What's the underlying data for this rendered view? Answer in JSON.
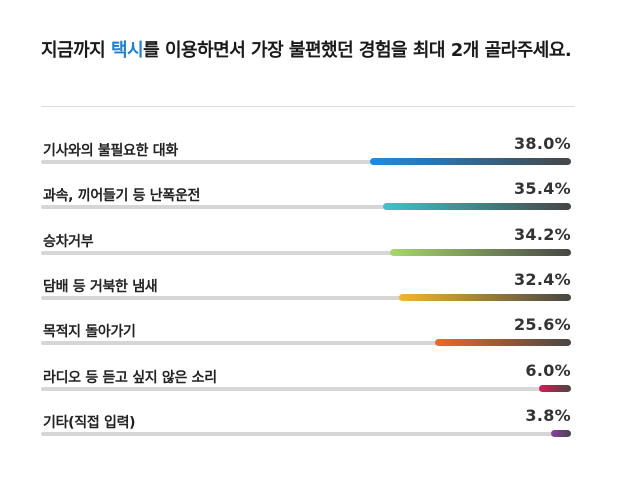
{
  "question": {
    "prefix": "지금까지 ",
    "highlight": "택시",
    "suffix": "를 이용하면서 가장 불편했던 경험을 최대 2개 골라주세요."
  },
  "chart_data": {
    "type": "bar",
    "orientation": "horizontal",
    "title": "지금까지 택시를 이용하면서 가장 불편했던 경험을 최대 2개 골라주세요.",
    "unit": "%",
    "xlim": [
      0,
      100
    ],
    "categories": [
      "기사와의 불필요한 대화",
      "과속, 끼어들기 등 난폭운전",
      "승차거부",
      "담배 등 거북한 냄새",
      "목적지 돌아가기",
      "라디오 등 듣고 싶지 않은 소리",
      "기타(직접 입력)"
    ],
    "values": [
      38.0,
      35.4,
      34.2,
      32.4,
      25.6,
      6.0,
      3.8
    ],
    "value_labels": [
      "38.0%",
      "35.4%",
      "34.2%",
      "32.4%",
      "25.6%",
      "6.0%",
      "3.8%"
    ],
    "colors": [
      [
        "#1f8be0",
        "#464646"
      ],
      [
        "#3cc4c8",
        "#464646"
      ],
      [
        "#a6d86a",
        "#464646"
      ],
      [
        "#f3b62a",
        "#464646"
      ],
      [
        "#ef6a25",
        "#464646"
      ],
      [
        "#d81b4e",
        "#464646"
      ],
      [
        "#8a3ca6",
        "#464646"
      ]
    ],
    "track_color": "#d6d6d6",
    "grid": false,
    "legend": "none"
  }
}
